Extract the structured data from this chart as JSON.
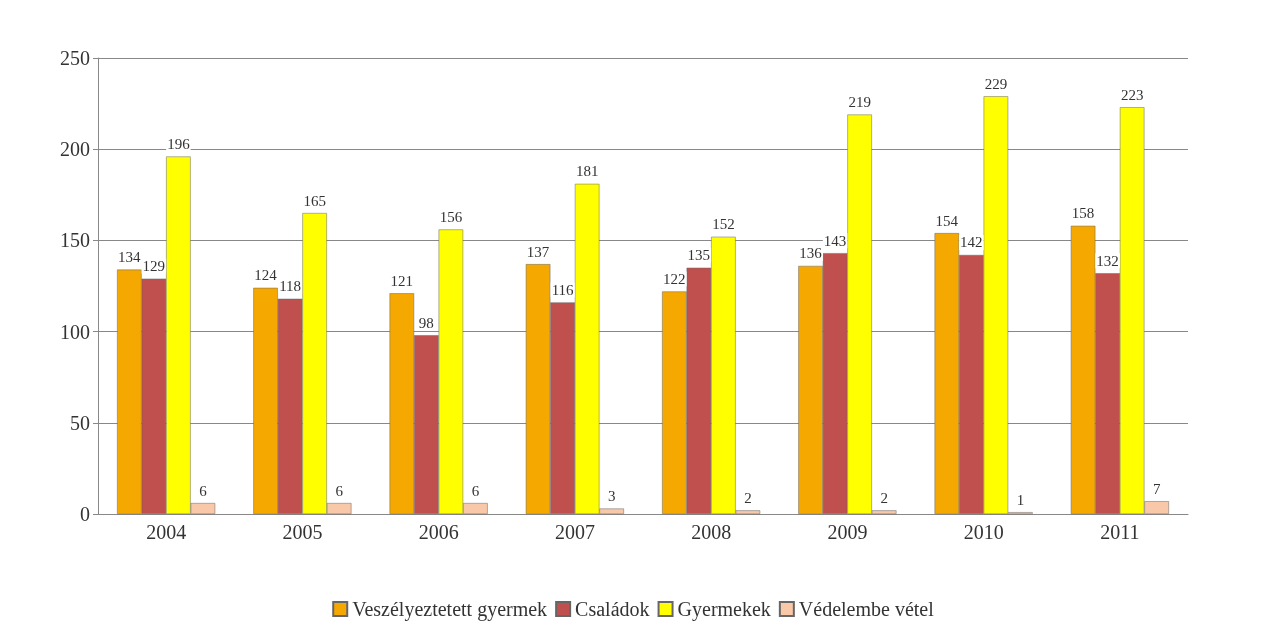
{
  "chart_data": {
    "type": "bar",
    "categories": [
      "2004",
      "2005",
      "2006",
      "2007",
      "2008",
      "2009",
      "2010",
      "2011"
    ],
    "series": [
      {
        "name": "Veszélyeztetett gyermek",
        "color": "#f5a800",
        "values": [
          134,
          124,
          121,
          137,
          122,
          136,
          154,
          158
        ]
      },
      {
        "name": "Családok",
        "color": "#c0504d",
        "values": [
          129,
          118,
          98,
          116,
          135,
          143,
          142,
          132
        ]
      },
      {
        "name": "Gyermekek",
        "color": "#ffff00",
        "values": [
          196,
          165,
          156,
          181,
          152,
          219,
          229,
          223
        ]
      },
      {
        "name": "Védelembe vétel",
        "color": "#f8c8a8",
        "values": [
          6,
          6,
          6,
          3,
          2,
          2,
          1,
          7
        ]
      }
    ],
    "ylim": [
      0,
      250
    ],
    "yticks": [
      0,
      50,
      100,
      150,
      200,
      250
    ],
    "grid": "y",
    "legend": "bottom",
    "data_labels": true
  }
}
